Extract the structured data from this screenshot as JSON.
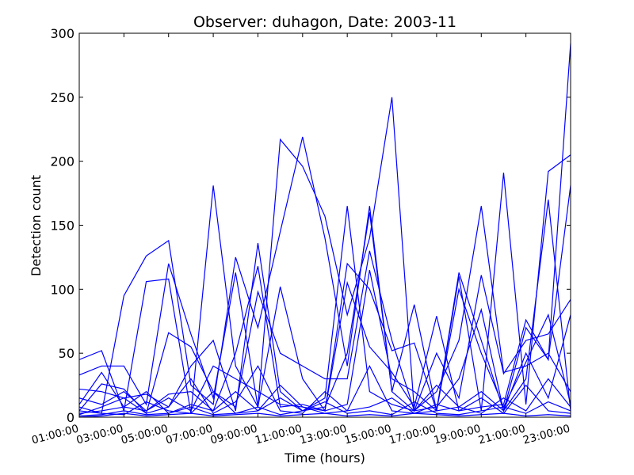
{
  "chart_data": {
    "type": "line",
    "title": "Observer: duhagon, Date: 2003-11",
    "xlabel": "Time (hours)",
    "ylabel": "Detection count",
    "ylim": [
      0,
      300
    ],
    "xlim": [
      1,
      23
    ],
    "grid": false,
    "line_color": "#0000ff",
    "yticks": [
      0,
      50,
      100,
      150,
      200,
      250,
      300
    ],
    "xticks": [
      {
        "value": 1,
        "label": "01:00:00"
      },
      {
        "value": 3,
        "label": "03:00:00"
      },
      {
        "value": 5,
        "label": "05:00:00"
      },
      {
        "value": 7,
        "label": "07:00:00"
      },
      {
        "value": 9,
        "label": "09:00:00"
      },
      {
        "value": 11,
        "label": "11:00:00"
      },
      {
        "value": 13,
        "label": "13:00:00"
      },
      {
        "value": 15,
        "label": "15:00:00"
      },
      {
        "value": 17,
        "label": "17:00:00"
      },
      {
        "value": 19,
        "label": "19:00:00"
      },
      {
        "value": 21,
        "label": "21:00:00"
      },
      {
        "value": 23,
        "label": "23:00:00"
      }
    ],
    "series": [
      {
        "x": [
          1,
          2,
          3,
          4,
          5,
          6,
          7,
          8,
          9,
          10,
          11,
          12,
          13,
          14,
          15,
          16,
          17,
          18,
          19,
          20,
          21,
          22,
          23
        ],
        "y": [
          45,
          52,
          5,
          106,
          108,
          3,
          181,
          40,
          8,
          217,
          196,
          157,
          80,
          140,
          250,
          5,
          20,
          60,
          165,
          35,
          40,
          50,
          20
        ]
      },
      {
        "x": [
          1,
          2,
          3,
          4,
          5,
          6,
          7,
          8,
          9,
          10,
          11,
          12,
          13,
          14,
          15,
          16,
          17,
          18,
          19,
          20,
          21,
          22,
          23
        ],
        "y": [
          8,
          3,
          95,
          126,
          138,
          25,
          10,
          125,
          70,
          145,
          219,
          140,
          40,
          165,
          20,
          88,
          5,
          110,
          5,
          191,
          10,
          192,
          205
        ]
      },
      {
        "x": [
          1,
          2,
          3,
          4,
          5,
          6,
          7,
          8,
          9,
          10,
          11,
          12,
          13,
          14,
          15,
          16,
          17,
          18,
          19,
          20,
          21,
          22,
          23
        ],
        "y": [
          33,
          40,
          40,
          10,
          120,
          65,
          15,
          113,
          8,
          102,
          30,
          5,
          120,
          100,
          52,
          58,
          5,
          113,
          60,
          5,
          70,
          45,
          181
        ]
      },
      {
        "x": [
          1,
          2,
          3,
          4,
          5,
          6,
          7,
          8,
          9,
          10,
          11,
          12,
          13,
          14,
          15,
          16,
          17,
          18,
          19,
          20,
          21,
          22,
          23
        ],
        "y": [
          22,
          20,
          15,
          18,
          8,
          40,
          60,
          5,
          136,
          20,
          5,
          8,
          50,
          160,
          20,
          5,
          8,
          30,
          84,
          5,
          30,
          170,
          5
        ]
      },
      {
        "x": [
          1,
          2,
          3,
          4,
          5,
          6,
          7,
          8,
          9,
          10,
          11,
          12,
          13,
          14,
          15,
          16,
          17,
          18,
          19,
          20,
          21,
          22,
          23
        ],
        "y": [
          15,
          10,
          20,
          5,
          18,
          20,
          5,
          50,
          118,
          8,
          10,
          5,
          105,
          55,
          35,
          8,
          79,
          5,
          8,
          10,
          76,
          45,
          292
        ]
      },
      {
        "x": [
          1,
          2,
          3,
          4,
          5,
          6,
          7,
          8,
          9,
          10,
          11,
          12,
          13,
          14,
          15,
          16,
          17,
          18,
          19,
          20,
          21,
          22,
          23
        ],
        "y": [
          5,
          26,
          22,
          3,
          66,
          55,
          20,
          8,
          98,
          50,
          40,
          30,
          30,
          130,
          60,
          5,
          50,
          15,
          111,
          34,
          60,
          65,
          92
        ]
      },
      {
        "x": [
          1,
          2,
          3,
          4,
          5,
          6,
          7,
          8,
          9,
          10,
          11,
          12,
          13,
          14,
          15,
          16,
          17,
          18,
          19,
          20,
          21,
          22,
          23
        ],
        "y": [
          3,
          5,
          8,
          5,
          15,
          5,
          40,
          30,
          20,
          10,
          8,
          5,
          10,
          115,
          30,
          20,
          5,
          100,
          50,
          8,
          43,
          80,
          10
        ]
      },
      {
        "x": [
          1,
          2,
          3,
          4,
          5,
          6,
          7,
          8,
          9,
          10,
          11,
          12,
          13,
          14,
          15,
          16,
          17,
          18,
          19,
          20,
          21,
          22,
          23
        ],
        "y": [
          10,
          35,
          8,
          20,
          3,
          10,
          5,
          20,
          5,
          15,
          5,
          15,
          165,
          20,
          10,
          5,
          25,
          8,
          20,
          5,
          50,
          15,
          80
        ]
      },
      {
        "x": [
          1,
          2,
          3,
          4,
          5,
          6,
          7,
          8,
          9,
          10,
          11,
          12,
          13,
          14,
          15,
          16,
          17,
          18,
          19,
          20,
          21,
          22,
          23
        ],
        "y": [
          2,
          8,
          15,
          3,
          8,
          30,
          3,
          12,
          40,
          5,
          3,
          20,
          5,
          8,
          15,
          3,
          5,
          8,
          3,
          15,
          5,
          30,
          8
        ]
      },
      {
        "x": [
          1,
          2,
          3,
          4,
          5,
          6,
          7,
          8,
          9,
          10,
          11,
          12,
          13,
          14,
          15,
          16,
          17,
          18,
          19,
          20,
          21,
          22,
          23
        ],
        "y": [
          5,
          3,
          2,
          12,
          5,
          3,
          20,
          3,
          5,
          25,
          8,
          3,
          5,
          40,
          5,
          3,
          10,
          5,
          15,
          3,
          25,
          5,
          3
        ]
      },
      {
        "x": [
          1,
          2,
          3,
          4,
          5,
          6,
          7,
          8,
          9,
          10,
          11,
          12,
          13,
          14,
          15,
          16,
          17,
          18,
          19,
          20,
          21,
          22,
          23
        ],
        "y": [
          1,
          2,
          5,
          2,
          3,
          8,
          2,
          3,
          8,
          2,
          5,
          12,
          3,
          5,
          2,
          12,
          3,
          2,
          5,
          8,
          3,
          12,
          5
        ]
      },
      {
        "x": [
          1,
          2,
          3,
          4,
          5,
          6,
          7,
          8,
          9,
          10,
          11,
          12,
          13,
          14,
          15,
          16,
          17,
          18,
          19,
          20,
          21,
          22,
          23
        ],
        "y": [
          0,
          1,
          3,
          1,
          2,
          3,
          1,
          2,
          3,
          1,
          2,
          3,
          1,
          2,
          1,
          3,
          2,
          1,
          2,
          3,
          1,
          2,
          1
        ]
      }
    ]
  }
}
